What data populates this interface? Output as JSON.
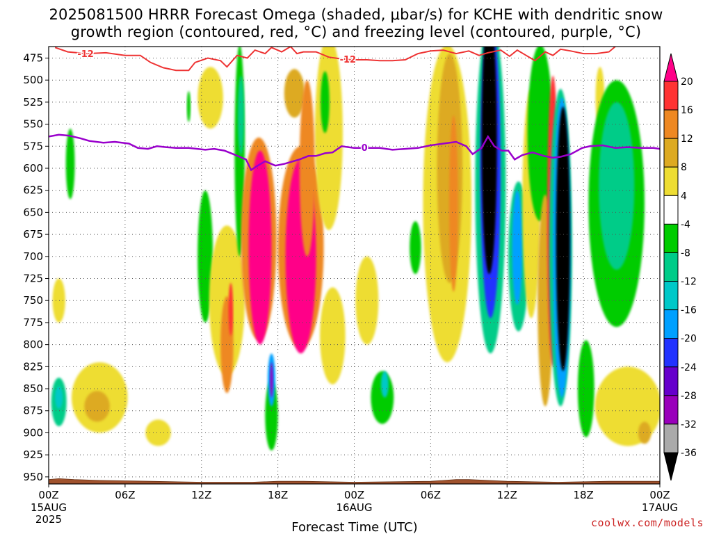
{
  "title": {
    "line1": "2025081500 HRRR Forecast Omega (shaded, μbar/s) for KCHE with dendritic snow",
    "line2": "growth region (contoured, red, °C) and freezing level (contoured, purple, °C)"
  },
  "credit": "coolwx.com/models",
  "chart_data": {
    "type": "heatmap",
    "title": "2025081500 HRRR Forecast Omega (shaded, μbar/s) for KCHE with dendritic snow growth region (contoured, red, °C) and freezing level (contoured, purple, °C)",
    "xlabel": "Forecast Time (UTC)",
    "ylabel": "",
    "x_unit": "forecast hour",
    "xlim": [
      0,
      48
    ],
    "ylim": [
      462,
      958
    ],
    "y_inverted": true,
    "grid": true,
    "x_ticks": [
      {
        "hour": 0,
        "label": "00Z",
        "sub": [
          "15AUG",
          "2025"
        ]
      },
      {
        "hour": 6,
        "label": "06Z",
        "sub": []
      },
      {
        "hour": 12,
        "label": "12Z",
        "sub": []
      },
      {
        "hour": 18,
        "label": "18Z",
        "sub": []
      },
      {
        "hour": 24,
        "label": "00Z",
        "sub": [
          "16AUG"
        ]
      },
      {
        "hour": 30,
        "label": "06Z",
        "sub": []
      },
      {
        "hour": 36,
        "label": "12Z",
        "sub": []
      },
      {
        "hour": 42,
        "label": "18Z",
        "sub": []
      },
      {
        "hour": 48,
        "label": "00Z",
        "sub": [
          "17AUG"
        ]
      }
    ],
    "y_ticks": [
      475,
      500,
      525,
      550,
      575,
      600,
      625,
      650,
      675,
      700,
      725,
      750,
      775,
      800,
      825,
      850,
      875,
      900,
      925,
      950
    ],
    "colorbar": {
      "levels": [
        -36,
        -32,
        -28,
        -24,
        -20,
        -16,
        -12,
        -8,
        -4,
        4,
        8,
        12,
        16,
        20
      ],
      "labels": [
        "20",
        "16",
        "12",
        "8",
        "4",
        "-4",
        "-8",
        "-12",
        "-16",
        "-20",
        "-24",
        "-28",
        "-32",
        "-36"
      ],
      "colors": [
        "#000000",
        "#aaaaaa",
        "#9900bb",
        "#6600cc",
        "#2233ff",
        "#00a0ff",
        "#00c8c8",
        "#00cc88",
        "#00cc00",
        "#ffffff",
        "#eedd33",
        "#ddaa22",
        "#ee8822",
        "#ff3333",
        "#ff0088"
      ],
      "extend": "both"
    },
    "omega_features": [
      {
        "hour": 0.8,
        "pressure": 865,
        "w": 0.6,
        "h": 55,
        "value": -10
      },
      {
        "hour": 0.8,
        "pressure": 860,
        "w": 0.3,
        "h": 25,
        "value": -14
      },
      {
        "hour": 1.7,
        "pressure": 595,
        "w": 0.35,
        "h": 80,
        "value": -6
      },
      {
        "hour": 0.8,
        "pressure": 750,
        "w": 0.5,
        "h": 50,
        "value": 5
      },
      {
        "hour": 4.0,
        "pressure": 860,
        "w": 2.2,
        "h": 80,
        "value": 5
      },
      {
        "hour": 3.8,
        "pressure": 870,
        "w": 1.0,
        "h": 35,
        "value": 9
      },
      {
        "hour": 8.6,
        "pressure": 900,
        "w": 1.0,
        "h": 30,
        "value": 5
      },
      {
        "hour": 12.3,
        "pressure": 700,
        "w": 0.6,
        "h": 150,
        "value": -7
      },
      {
        "hour": 11.0,
        "pressure": 530,
        "w": 0.15,
        "h": 35,
        "value": -6
      },
      {
        "hour": 12.7,
        "pressure": 520,
        "w": 1.0,
        "h": 70,
        "value": 6
      },
      {
        "hour": 14.0,
        "pressure": 750,
        "w": 1.4,
        "h": 170,
        "value": 7
      },
      {
        "hour": 14.0,
        "pressure": 800,
        "w": 0.5,
        "h": 110,
        "value": 12
      },
      {
        "hour": 14.3,
        "pressure": 760,
        "w": 0.18,
        "h": 60,
        "value": 17
      },
      {
        "hour": 15.0,
        "pressure": 580,
        "w": 0.4,
        "h": 240,
        "value": -8
      },
      {
        "hour": 15.1,
        "pressure": 540,
        "w": 0.25,
        "h": 90,
        "value": -12
      },
      {
        "hour": 16.5,
        "pressure": 680,
        "w": 1.4,
        "h": 230,
        "value": 14
      },
      {
        "hour": 16.6,
        "pressure": 690,
        "w": 0.9,
        "h": 220,
        "value": 22
      },
      {
        "hour": 17.5,
        "pressure": 880,
        "w": 0.5,
        "h": 80,
        "value": -8
      },
      {
        "hour": 17.5,
        "pressure": 840,
        "w": 0.3,
        "h": 60,
        "value": -20
      },
      {
        "hour": 17.5,
        "pressure": 840,
        "w": 0.12,
        "h": 40,
        "value": -30
      },
      {
        "hour": 19.8,
        "pressure": 690,
        "w": 1.8,
        "h": 230,
        "value": 14
      },
      {
        "hour": 19.8,
        "pressure": 700,
        "w": 1.2,
        "h": 220,
        "value": 22
      },
      {
        "hour": 22.0,
        "pressure": 560,
        "w": 1.1,
        "h": 220,
        "value": 5
      },
      {
        "hour": 21.7,
        "pressure": 525,
        "w": 0.35,
        "h": 70,
        "value": -8
      },
      {
        "hour": 19.3,
        "pressure": 515,
        "w": 0.8,
        "h": 55,
        "value": 10
      },
      {
        "hour": 20.3,
        "pressure": 600,
        "w": 0.6,
        "h": 200,
        "value": 14
      },
      {
        "hour": 22.3,
        "pressure": 790,
        "w": 1.0,
        "h": 110,
        "value": 5
      },
      {
        "hour": 25.0,
        "pressure": 750,
        "w": 0.9,
        "h": 100,
        "value": 5
      },
      {
        "hour": 26.2,
        "pressure": 860,
        "w": 0.9,
        "h": 60,
        "value": -8
      },
      {
        "hour": 26.4,
        "pressure": 845,
        "w": 0.3,
        "h": 30,
        "value": -14
      },
      {
        "hour": 28.8,
        "pressure": 690,
        "w": 0.45,
        "h": 60,
        "value": -7
      },
      {
        "hour": 31.3,
        "pressure": 640,
        "w": 1.9,
        "h": 360,
        "value": 6
      },
      {
        "hour": 31.5,
        "pressure": 600,
        "w": 1.0,
        "h": 260,
        "value": 10
      },
      {
        "hour": 31.8,
        "pressure": 640,
        "w": 0.35,
        "h": 200,
        "value": 14
      },
      {
        "hour": 34.7,
        "pressure": 620,
        "w": 1.2,
        "h": 380,
        "value": -10
      },
      {
        "hour": 34.7,
        "pressure": 600,
        "w": 0.8,
        "h": 340,
        "value": -24
      },
      {
        "hour": 34.6,
        "pressure": 570,
        "w": 0.6,
        "h": 300,
        "value": -40
      },
      {
        "hour": 36.9,
        "pressure": 700,
        "w": 0.8,
        "h": 170,
        "value": -9
      },
      {
        "hour": 36.8,
        "pressure": 690,
        "w": 0.4,
        "h": 130,
        "value": -18
      },
      {
        "hour": 37.9,
        "pressure": 640,
        "w": 0.7,
        "h": 260,
        "value": 6
      },
      {
        "hour": 38.6,
        "pressure": 560,
        "w": 1.0,
        "h": 200,
        "value": -6
      },
      {
        "hour": 39.0,
        "pressure": 750,
        "w": 0.6,
        "h": 240,
        "value": 10
      },
      {
        "hour": 39.6,
        "pressure": 660,
        "w": 0.45,
        "h": 330,
        "value": 16
      },
      {
        "hour": 40.2,
        "pressure": 690,
        "w": 0.9,
        "h": 360,
        "value": -10
      },
      {
        "hour": 40.3,
        "pressure": 690,
        "w": 0.7,
        "h": 340,
        "value": -20
      },
      {
        "hour": 40.4,
        "pressure": 680,
        "w": 0.55,
        "h": 300,
        "value": -40
      },
      {
        "hour": 42.2,
        "pressure": 850,
        "w": 0.65,
        "h": 110,
        "value": -8
      },
      {
        "hour": 43.3,
        "pressure": 520,
        "w": 0.35,
        "h": 70,
        "value": 5
      },
      {
        "hour": 44.6,
        "pressure": 640,
        "w": 2.2,
        "h": 280,
        "value": -6
      },
      {
        "hour": 44.6,
        "pressure": 620,
        "w": 1.4,
        "h": 190,
        "value": -9
      },
      {
        "hour": 45.5,
        "pressure": 870,
        "w": 2.6,
        "h": 90,
        "value": 5
      },
      {
        "hour": 46.8,
        "pressure": 900,
        "w": 0.5,
        "h": 25,
        "value": 10
      }
    ],
    "dgz_contour": {
      "label": "-12",
      "label_positions": [
        2.9,
        23.5
      ],
      "points": [
        [
          0.5,
          463
        ],
        [
          1.5,
          468
        ],
        [
          3.0,
          470
        ],
        [
          4.5,
          469
        ],
        [
          6.0,
          472
        ],
        [
          7.2,
          472
        ],
        [
          8.0,
          480
        ],
        [
          9.0,
          486
        ],
        [
          10.0,
          489
        ],
        [
          11.0,
          489
        ],
        [
          11.5,
          480
        ],
        [
          12.5,
          475
        ],
        [
          13.5,
          478
        ],
        [
          14.0,
          485
        ],
        [
          14.8,
          472
        ],
        [
          15.6,
          475
        ],
        [
          16.2,
          466
        ],
        [
          17.0,
          470
        ],
        [
          17.5,
          463
        ],
        [
          18.3,
          468
        ],
        [
          19.0,
          462
        ],
        [
          19.5,
          470
        ],
        [
          20.0,
          468
        ],
        [
          21.0,
          468
        ],
        [
          22.0,
          474
        ],
        [
          23.0,
          476
        ],
        [
          24.0,
          477
        ],
        [
          25.0,
          477
        ],
        [
          26.0,
          478
        ],
        [
          27.0,
          478
        ],
        [
          28.0,
          477
        ],
        [
          29.0,
          470
        ],
        [
          30.0,
          467
        ],
        [
          31.0,
          466
        ],
        [
          32.0,
          470
        ],
        [
          33.0,
          467
        ],
        [
          33.8,
          472
        ],
        [
          34.5,
          469
        ],
        [
          35.5,
          466
        ],
        [
          36.2,
          473
        ],
        [
          36.8,
          466
        ],
        [
          37.5,
          472
        ],
        [
          38.2,
          478
        ],
        [
          39.0,
          468
        ],
        [
          39.6,
          472
        ],
        [
          40.2,
          465
        ],
        [
          41.0,
          467
        ],
        [
          42.0,
          470
        ],
        [
          43.0,
          470
        ],
        [
          44.0,
          468
        ],
        [
          44.5,
          462
        ]
      ]
    },
    "freezing_level": {
      "label": "0",
      "label_position": 24.8,
      "points": [
        [
          0.0,
          564
        ],
        [
          0.8,
          562
        ],
        [
          1.6,
          563
        ],
        [
          2.5,
          566
        ],
        [
          3.2,
          569
        ],
        [
          4.3,
          571
        ],
        [
          5.2,
          570
        ],
        [
          6.3,
          572
        ],
        [
          7.0,
          577
        ],
        [
          7.8,
          578
        ],
        [
          8.5,
          575
        ],
        [
          9.2,
          576
        ],
        [
          10.0,
          577
        ],
        [
          11.0,
          577
        ],
        [
          12.3,
          579
        ],
        [
          13.0,
          578
        ],
        [
          13.8,
          580
        ],
        [
          14.5,
          584
        ],
        [
          15.0,
          587
        ],
        [
          15.5,
          590
        ],
        [
          15.9,
          602
        ],
        [
          16.3,
          598
        ],
        [
          17.0,
          592
        ],
        [
          17.8,
          597
        ],
        [
          18.5,
          595
        ],
        [
          19.0,
          593
        ],
        [
          19.7,
          590
        ],
        [
          20.4,
          586
        ],
        [
          21.0,
          586
        ],
        [
          21.7,
          583
        ],
        [
          22.3,
          582
        ],
        [
          23.0,
          575
        ],
        [
          24.0,
          577
        ],
        [
          25.0,
          577
        ],
        [
          26.0,
          577
        ],
        [
          27.0,
          579
        ],
        [
          28.0,
          578
        ],
        [
          29.0,
          577
        ],
        [
          30.0,
          574
        ],
        [
          31.0,
          572
        ],
        [
          32.0,
          570
        ],
        [
          32.8,
          575
        ],
        [
          33.3,
          584
        ],
        [
          34.0,
          577
        ],
        [
          34.5,
          564
        ],
        [
          35.0,
          575
        ],
        [
          35.6,
          580
        ],
        [
          36.1,
          580
        ],
        [
          36.6,
          590
        ],
        [
          37.2,
          585
        ],
        [
          38.0,
          582
        ],
        [
          38.9,
          586
        ],
        [
          39.6,
          588
        ],
        [
          40.2,
          587
        ],
        [
          41.0,
          584
        ],
        [
          41.9,
          577
        ],
        [
          42.5,
          575
        ],
        [
          43.5,
          574
        ],
        [
          44.5,
          577
        ],
        [
          45.5,
          576
        ],
        [
          46.5,
          577
        ],
        [
          47.5,
          577
        ],
        [
          48.0,
          578
        ]
      ]
    },
    "terrain": {
      "surface_pressure": 954,
      "points": [
        [
          0.0,
          953
        ],
        [
          0.8,
          952
        ],
        [
          2.0,
          953
        ],
        [
          4.0,
          954
        ],
        [
          8.0,
          955
        ],
        [
          12.0,
          956
        ],
        [
          16.0,
          956
        ],
        [
          18.0,
          955
        ],
        [
          20.0,
          955
        ],
        [
          24.0,
          956
        ],
        [
          30.0,
          955
        ],
        [
          32.0,
          953
        ],
        [
          33.0,
          953
        ],
        [
          36.0,
          955
        ],
        [
          40.0,
          956
        ],
        [
          44.0,
          955
        ],
        [
          48.0,
          955
        ]
      ]
    }
  }
}
